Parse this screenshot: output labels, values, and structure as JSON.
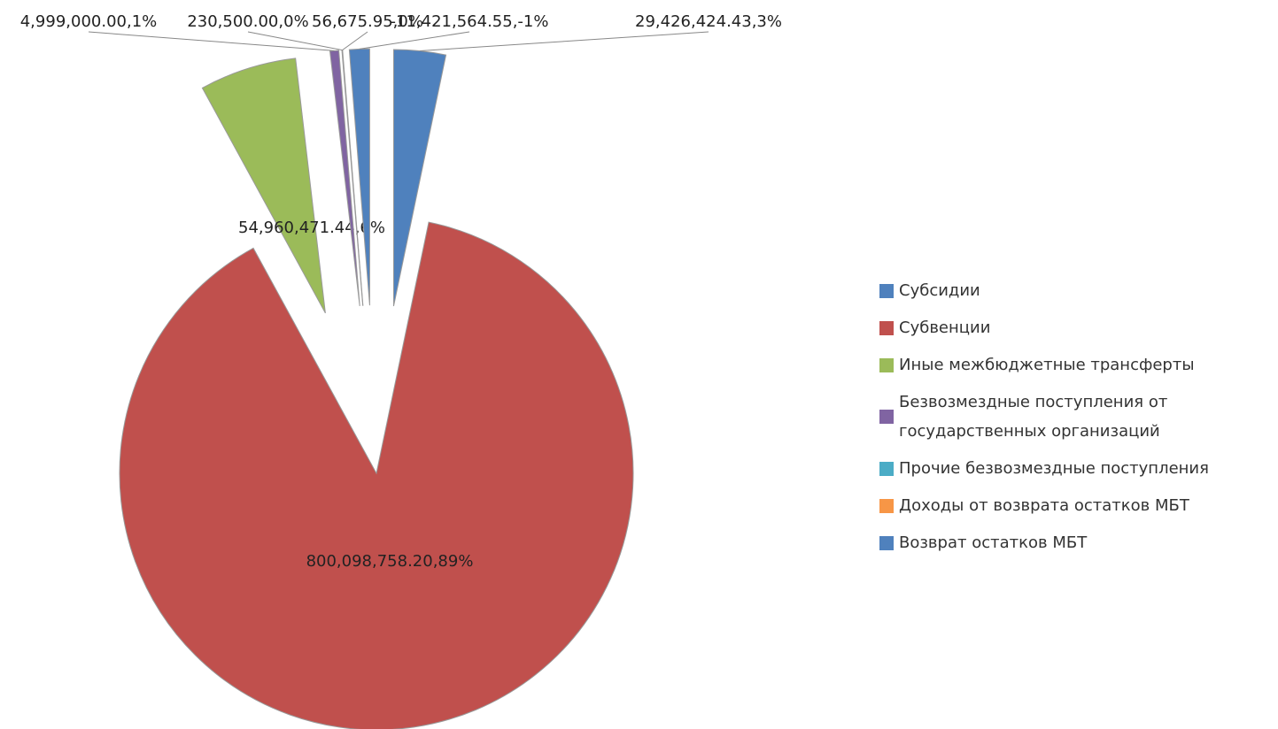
{
  "chart_data": {
    "type": "pie",
    "categories": [
      "Субсидии",
      "Субвенции",
      "Иные межбюджетные трансферты",
      "Безвозмездные поступления от государственных организаций",
      "Прочие безвозмездные поступления",
      "Доходы от возврата остатков МБТ",
      "Возврат остатков МБТ"
    ],
    "values": [
      29426424.43,
      800098758.2,
      54960471.44,
      4999000.0,
      230500.0,
      56675.95,
      -11421564.55
    ],
    "value_labels": [
      "29,426,424.43,3%",
      "800,098,758.20,89%",
      "54,960,471.44,6%",
      "4,999,000.00,1%",
      "230,500.00,0%",
      "56,675.95,0%",
      "-11,421,564.55,-1%"
    ],
    "colors": [
      "#4f81bd",
      "#c0504d",
      "#9bbb59",
      "#8064a2",
      "#4bacc6",
      "#f79646",
      "#4f81bd"
    ],
    "legend": "right"
  }
}
